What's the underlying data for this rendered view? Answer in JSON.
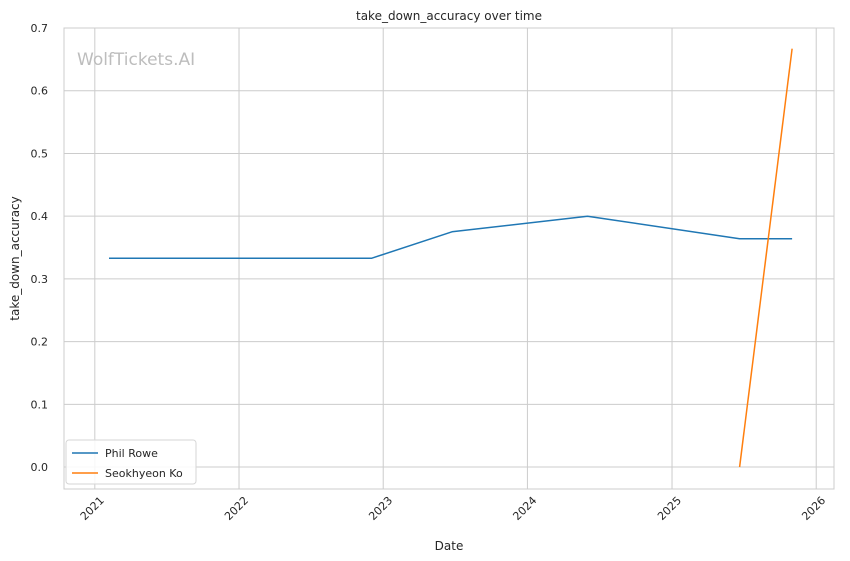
{
  "watermark": "WolfTickets.AI",
  "chart_data": {
    "type": "line",
    "title": "take_down_accuracy over time",
    "xlabel": "Date",
    "ylabel": "take_down_accuracy",
    "xlim": [
      "2020-10-15",
      "2026-02-15"
    ],
    "ylim": [
      -0.035,
      0.7
    ],
    "x_ticks": [
      "2021",
      "2022",
      "2023",
      "2024",
      "2025",
      "2026"
    ],
    "y_ticks": [
      "0.0",
      "0.1",
      "0.2",
      "0.3",
      "0.4",
      "0.5",
      "0.6",
      "0.7"
    ],
    "grid": true,
    "legend_position": "lower-left",
    "series": [
      {
        "name": "Phil Rowe",
        "color": "#1f77b4",
        "points": [
          {
            "x": "2021-02-06",
            "y": 0.333
          },
          {
            "x": "2022-12-03",
            "y": 0.333
          },
          {
            "x": "2023-06-24",
            "y": 0.375
          },
          {
            "x": "2024-06-01",
            "y": 0.4
          },
          {
            "x": "2025-06-21",
            "y": 0.364
          },
          {
            "x": "2025-11-01",
            "y": 0.364
          }
        ]
      },
      {
        "name": "Seokhyeon Ko",
        "color": "#ff7f0e",
        "points": [
          {
            "x": "2025-06-21",
            "y": 0.0
          },
          {
            "x": "2025-11-01",
            "y": 0.667
          }
        ]
      }
    ]
  }
}
